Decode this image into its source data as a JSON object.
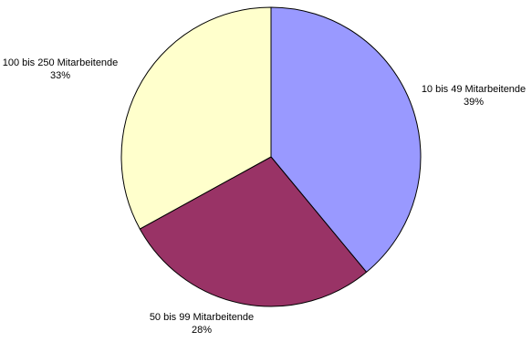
{
  "chart_data": {
    "type": "pie",
    "title": "",
    "slices": [
      {
        "label": "10 bis 49 Mitarbeitende",
        "value": 39,
        "value_label": "39%",
        "color": "#9999ff"
      },
      {
        "label": "50 bis 99 Mitarbeitende",
        "value": 28,
        "value_label": "28%",
        "color": "#993366"
      },
      {
        "label": "100 bis 250 Mitarbeitende",
        "value": 33,
        "value_label": "33%",
        "color": "#ffffcc"
      }
    ],
    "start_angle_deg": 0,
    "direction": "clockwise",
    "legend": "none"
  }
}
